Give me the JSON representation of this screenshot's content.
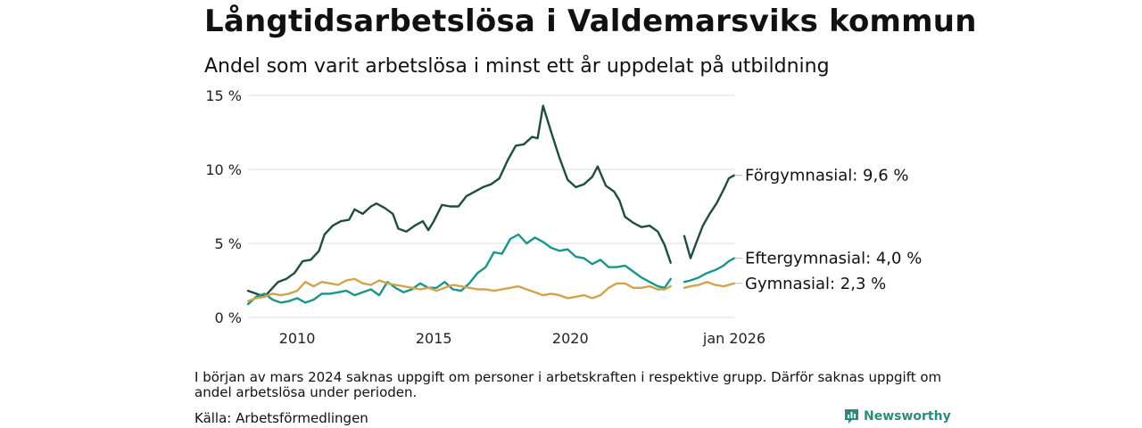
{
  "title": "Långtidsarbetslösa i Valdemarsviks kommun",
  "subtitle": "Andel som varit arbetslösa i minst ett år uppdelat på utbildning",
  "note": "I början av mars 2024 saknas uppgift om personer i arbetskraften i respektive grupp. Därför saknas uppgift om andel arbetslösa under perioden.",
  "source": "Källa: Arbetsförmedlingen",
  "brand": "Newsworthy",
  "colors": {
    "forgymnasial": "#1e4d44",
    "eftergymnasial": "#19968a",
    "gymnasial": "#d4a24c",
    "grid": "#dddddd",
    "brand": "#2d8a7f"
  },
  "chart_data": {
    "type": "line",
    "title": "Långtidsarbetslösa i Valdemarsviks kommun",
    "xlabel": "",
    "ylabel": "",
    "x_ticks": [
      {
        "x": 2010.0,
        "label": "2010"
      },
      {
        "x": 2015.0,
        "label": "2015"
      },
      {
        "x": 2020.0,
        "label": "2020"
      },
      {
        "x": 2026.0,
        "label": "jan 2026"
      }
    ],
    "y_ticks": [
      {
        "y": 0,
        "label": "0 %"
      },
      {
        "y": 5,
        "label": "5 %"
      },
      {
        "y": 10,
        "label": "10 %"
      },
      {
        "y": 15,
        "label": "15 %"
      }
    ],
    "xlim": [
      2008.2,
      2026.0
    ],
    "ylim": [
      0,
      15
    ],
    "gap": [
      2023.67,
      2024.17
    ],
    "series": [
      {
        "name": "Förgymnasial",
        "end_label": "Förgymnasial: 9,6 %",
        "color_key": "forgymnasial",
        "points": [
          [
            2008.2,
            1.8
          ],
          [
            2008.5,
            1.6
          ],
          [
            2008.8,
            1.4
          ],
          [
            2009.1,
            2.0
          ],
          [
            2009.3,
            2.4
          ],
          [
            2009.6,
            2.6
          ],
          [
            2009.9,
            3.0
          ],
          [
            2010.2,
            3.8
          ],
          [
            2010.5,
            3.9
          ],
          [
            2010.8,
            4.5
          ],
          [
            2011.0,
            5.6
          ],
          [
            2011.3,
            6.2
          ],
          [
            2011.6,
            6.5
          ],
          [
            2011.9,
            6.6
          ],
          [
            2012.1,
            7.3
          ],
          [
            2012.4,
            7.0
          ],
          [
            2012.7,
            7.5
          ],
          [
            2012.9,
            7.7
          ],
          [
            2013.2,
            7.4
          ],
          [
            2013.5,
            7.0
          ],
          [
            2013.7,
            6.0
          ],
          [
            2014.0,
            5.8
          ],
          [
            2014.3,
            6.2
          ],
          [
            2014.6,
            6.5
          ],
          [
            2014.8,
            5.9
          ],
          [
            2015.0,
            6.5
          ],
          [
            2015.3,
            7.6
          ],
          [
            2015.6,
            7.5
          ],
          [
            2015.9,
            7.5
          ],
          [
            2016.2,
            8.2
          ],
          [
            2016.5,
            8.5
          ],
          [
            2016.8,
            8.8
          ],
          [
            2017.1,
            9.0
          ],
          [
            2017.4,
            9.4
          ],
          [
            2017.7,
            10.6
          ],
          [
            2018.0,
            11.6
          ],
          [
            2018.3,
            11.7
          ],
          [
            2018.6,
            12.2
          ],
          [
            2018.8,
            12.1
          ],
          [
            2019.0,
            14.3
          ],
          [
            2019.3,
            12.5
          ],
          [
            2019.6,
            10.8
          ],
          [
            2019.9,
            9.3
          ],
          [
            2020.2,
            8.8
          ],
          [
            2020.5,
            9.0
          ],
          [
            2020.8,
            9.5
          ],
          [
            2021.0,
            10.2
          ],
          [
            2021.3,
            8.9
          ],
          [
            2021.6,
            8.5
          ],
          [
            2021.8,
            7.9
          ],
          [
            2022.0,
            6.8
          ],
          [
            2022.3,
            6.4
          ],
          [
            2022.6,
            6.1
          ],
          [
            2022.9,
            6.2
          ],
          [
            2023.2,
            5.8
          ],
          [
            2023.45,
            4.9
          ],
          [
            2023.67,
            3.7
          ],
          [
            2024.17,
            5.5
          ],
          [
            2024.4,
            4.0
          ],
          [
            2024.6,
            5.0
          ],
          [
            2024.85,
            6.2
          ],
          [
            2025.1,
            7.0
          ],
          [
            2025.35,
            7.7
          ],
          [
            2025.6,
            8.6
          ],
          [
            2025.8,
            9.4
          ],
          [
            2026.0,
            9.6
          ]
        ]
      },
      {
        "name": "Eftergymnasial",
        "end_label": "Eftergymnasial: 4,0 %",
        "color_key": "eftergymnasial",
        "points": [
          [
            2008.2,
            0.9
          ],
          [
            2008.5,
            1.4
          ],
          [
            2008.8,
            1.6
          ],
          [
            2009.1,
            1.2
          ],
          [
            2009.4,
            1.0
          ],
          [
            2009.7,
            1.1
          ],
          [
            2010.0,
            1.3
          ],
          [
            2010.3,
            1.0
          ],
          [
            2010.6,
            1.2
          ],
          [
            2010.9,
            1.6
          ],
          [
            2011.2,
            1.6
          ],
          [
            2011.5,
            1.7
          ],
          [
            2011.8,
            1.8
          ],
          [
            2012.1,
            1.5
          ],
          [
            2012.4,
            1.7
          ],
          [
            2012.7,
            1.9
          ],
          [
            2013.0,
            1.5
          ],
          [
            2013.3,
            2.4
          ],
          [
            2013.6,
            2.0
          ],
          [
            2013.9,
            1.7
          ],
          [
            2014.2,
            1.9
          ],
          [
            2014.5,
            2.3
          ],
          [
            2014.8,
            2.0
          ],
          [
            2015.1,
            2.0
          ],
          [
            2015.4,
            2.4
          ],
          [
            2015.7,
            1.9
          ],
          [
            2016.0,
            1.8
          ],
          [
            2016.3,
            2.3
          ],
          [
            2016.6,
            3.0
          ],
          [
            2016.9,
            3.4
          ],
          [
            2017.2,
            4.4
          ],
          [
            2017.5,
            4.3
          ],
          [
            2017.8,
            5.3
          ],
          [
            2018.1,
            5.6
          ],
          [
            2018.4,
            5.0
          ],
          [
            2018.7,
            5.4
          ],
          [
            2019.0,
            5.1
          ],
          [
            2019.3,
            4.7
          ],
          [
            2019.6,
            4.5
          ],
          [
            2019.9,
            4.6
          ],
          [
            2020.2,
            4.1
          ],
          [
            2020.5,
            4.0
          ],
          [
            2020.8,
            3.6
          ],
          [
            2021.1,
            3.9
          ],
          [
            2021.4,
            3.4
          ],
          [
            2021.7,
            3.4
          ],
          [
            2022.0,
            3.5
          ],
          [
            2022.3,
            3.1
          ],
          [
            2022.6,
            2.7
          ],
          [
            2022.9,
            2.4
          ],
          [
            2023.2,
            2.1
          ],
          [
            2023.45,
            2.0
          ],
          [
            2023.67,
            2.6
          ],
          [
            2024.17,
            2.4
          ],
          [
            2024.4,
            2.5
          ],
          [
            2024.7,
            2.7
          ],
          [
            2025.0,
            3.0
          ],
          [
            2025.3,
            3.2
          ],
          [
            2025.6,
            3.5
          ],
          [
            2025.8,
            3.8
          ],
          [
            2026.0,
            4.0
          ]
        ]
      },
      {
        "name": "Gymnasial",
        "end_label": "Gymnasial: 2,3 %",
        "color_key": "gymnasial",
        "points": [
          [
            2008.2,
            1.1
          ],
          [
            2008.5,
            1.3
          ],
          [
            2008.8,
            1.4
          ],
          [
            2009.1,
            1.6
          ],
          [
            2009.4,
            1.5
          ],
          [
            2009.7,
            1.6
          ],
          [
            2010.0,
            1.8
          ],
          [
            2010.3,
            2.4
          ],
          [
            2010.6,
            2.1
          ],
          [
            2010.9,
            2.4
          ],
          [
            2011.2,
            2.3
          ],
          [
            2011.5,
            2.2
          ],
          [
            2011.8,
            2.5
          ],
          [
            2012.1,
            2.6
          ],
          [
            2012.4,
            2.3
          ],
          [
            2012.7,
            2.2
          ],
          [
            2013.0,
            2.5
          ],
          [
            2013.3,
            2.3
          ],
          [
            2013.6,
            2.2
          ],
          [
            2013.9,
            2.1
          ],
          [
            2014.2,
            2.0
          ],
          [
            2014.5,
            1.9
          ],
          [
            2014.8,
            2.0
          ],
          [
            2015.1,
            1.8
          ],
          [
            2015.4,
            2.0
          ],
          [
            2015.7,
            2.2
          ],
          [
            2016.0,
            2.1
          ],
          [
            2016.3,
            2.0
          ],
          [
            2016.6,
            1.9
          ],
          [
            2016.9,
            1.9
          ],
          [
            2017.2,
            1.8
          ],
          [
            2017.5,
            1.9
          ],
          [
            2017.8,
            2.0
          ],
          [
            2018.1,
            2.1
          ],
          [
            2018.4,
            1.9
          ],
          [
            2018.7,
            1.7
          ],
          [
            2019.0,
            1.5
          ],
          [
            2019.3,
            1.6
          ],
          [
            2019.6,
            1.5
          ],
          [
            2019.9,
            1.3
          ],
          [
            2020.2,
            1.4
          ],
          [
            2020.5,
            1.5
          ],
          [
            2020.8,
            1.3
          ],
          [
            2021.1,
            1.5
          ],
          [
            2021.4,
            2.0
          ],
          [
            2021.7,
            2.3
          ],
          [
            2022.0,
            2.3
          ],
          [
            2022.3,
            2.0
          ],
          [
            2022.6,
            2.0
          ],
          [
            2022.9,
            2.1
          ],
          [
            2023.2,
            1.9
          ],
          [
            2023.45,
            1.9
          ],
          [
            2023.67,
            2.1
          ],
          [
            2024.17,
            2.0
          ],
          [
            2024.4,
            2.1
          ],
          [
            2024.7,
            2.2
          ],
          [
            2025.0,
            2.4
          ],
          [
            2025.3,
            2.2
          ],
          [
            2025.6,
            2.1
          ],
          [
            2025.8,
            2.2
          ],
          [
            2026.0,
            2.3
          ]
        ]
      }
    ]
  }
}
